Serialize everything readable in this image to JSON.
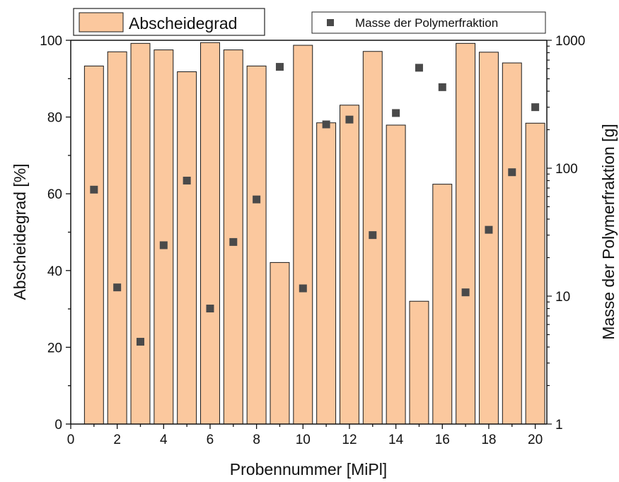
{
  "chart_data": {
    "type": "bar",
    "x": [
      1,
      2,
      3,
      4,
      5,
      6,
      7,
      8,
      9,
      10,
      11,
      12,
      13,
      14,
      15,
      16,
      17,
      18,
      19,
      20
    ],
    "series": [
      {
        "name": "Abscheidegrad",
        "type": "bar",
        "axis": "left",
        "values": [
          93.3,
          97.0,
          99.2,
          97.5,
          91.8,
          99.4,
          97.5,
          93.3,
          42.1,
          98.7,
          78.5,
          83.1,
          97.1,
          77.9,
          32.0,
          62.5,
          99.2,
          96.9,
          94.1,
          78.4
        ]
      },
      {
        "name": "Masse der Polymerfraktion",
        "type": "scatter",
        "axis": "right",
        "values": [
          68,
          11.7,
          4.4,
          25,
          80,
          8,
          26.5,
          57,
          620,
          11.5,
          220,
          240,
          30,
          270,
          610,
          430,
          10.7,
          33,
          93,
          300
        ]
      }
    ],
    "xlabel": "Probennummer [MiPl]",
    "ylabel": "Abscheidegrad [%]",
    "y2label": "Masse der Polymerfraktion [g]",
    "xlim": [
      0,
      20.5
    ],
    "ylim": [
      0,
      100
    ],
    "y2lim": [
      1,
      1000
    ],
    "y2scale": "log",
    "xticks": [
      "0",
      "2",
      "4",
      "6",
      "8",
      "10",
      "12",
      "14",
      "16",
      "18",
      "20"
    ],
    "yticks": [
      "0",
      "20",
      "40",
      "60",
      "80",
      "100"
    ],
    "y2ticks": [
      "1",
      "10",
      "100",
      "1000"
    ],
    "grid": false,
    "legend_placement": "top",
    "colors": {
      "bar_fill": "#fbc89e",
      "bar_stroke": "#1a1a1a",
      "marker": "#4a4a4a"
    }
  }
}
